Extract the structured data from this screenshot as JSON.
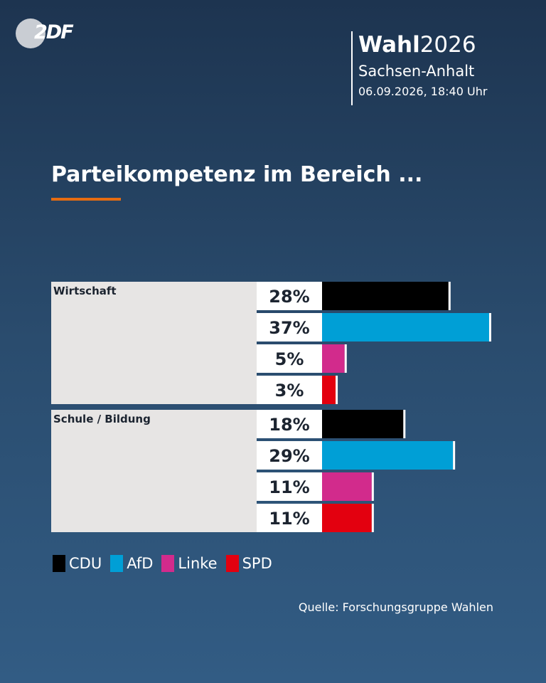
{
  "header": {
    "logo_text": "2DF",
    "election_bold": "Wahl",
    "election_year": "2026",
    "region": "Sachsen-Anhalt",
    "timestamp": "06.09.2026, 18:40 Uhr"
  },
  "source": "Quelle: Forschungsgruppe Wahlen",
  "chart_data": {
    "type": "bar",
    "orientation": "horizontal",
    "title": "Parteikompetenz im Bereich ...",
    "value_suffix": "%",
    "grid": false,
    "legend_position": "bottom-left",
    "series": [
      {
        "name": "CDU",
        "color": "#000000"
      },
      {
        "name": "AfD",
        "color": "#009fd6"
      },
      {
        "name": "Linke",
        "color": "#d22b8c"
      },
      {
        "name": "SPD",
        "color": "#e3000f"
      }
    ],
    "groups": [
      {
        "category": "Wirtschaft",
        "values": [
          28,
          37,
          5,
          3
        ]
      },
      {
        "category": "Schule / Bildung",
        "values": [
          18,
          29,
          11,
          11
        ]
      }
    ]
  }
}
